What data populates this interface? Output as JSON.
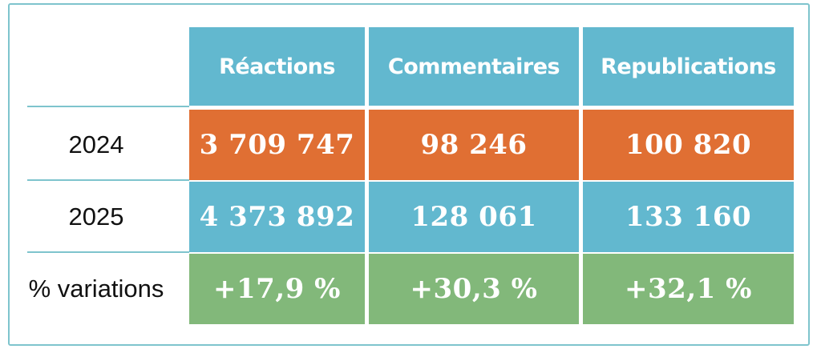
{
  "colors": {
    "header_bg": "#62b8cf",
    "row_2024_bg": "#e06f33",
    "row_2025_bg": "#62b8cf",
    "row_variation_bg": "#82b87a",
    "frame": "#7ec4cd",
    "text_light": "#ffffff",
    "text_dark": "#111111"
  },
  "chart_data": {
    "type": "table",
    "columns": [
      "Réactions",
      "Commentaires",
      "Republications"
    ],
    "rows": [
      {
        "label": "2024",
        "values": [
          "3 709 747",
          "98 246",
          "100 820"
        ]
      },
      {
        "label": "2025",
        "values": [
          "4 373 892",
          "128 061",
          "133 160"
        ]
      },
      {
        "label": "% variations",
        "values": [
          "+17,9 %",
          "+30,3 %",
          "+32,1 %"
        ]
      }
    ]
  }
}
